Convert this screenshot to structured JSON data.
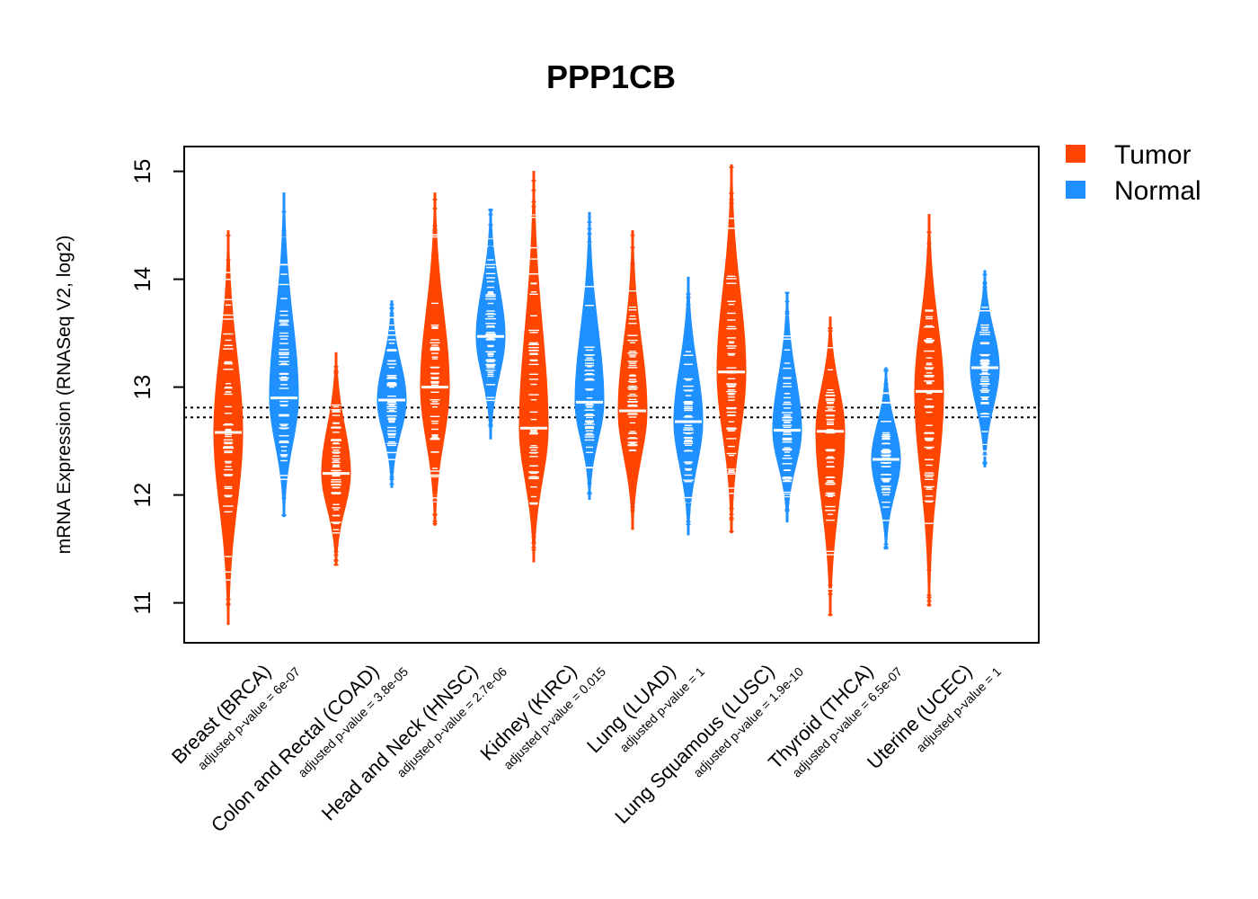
{
  "chart_data": {
    "type": "violin",
    "title": "PPP1CB",
    "ylabel": "mRNA Expression (RNASeq V2, log2)",
    "xlabel": "",
    "ylim": [
      10.63,
      15.23
    ],
    "yticks": [
      "11",
      "12",
      "13",
      "14",
      "15"
    ],
    "reference_lines": [
      12.72,
      12.81
    ],
    "legend": {
      "position": "top-right",
      "entries": [
        {
          "name": "Tumor",
          "color": "#FF4500"
        },
        {
          "name": "Normal",
          "color": "#1E90FF"
        }
      ]
    },
    "categories": [
      {
        "label": "Breast (BRCA)",
        "pvalue": "adjusted p-value = 6e-07",
        "tumor": {
          "median": 12.58,
          "min": 10.8,
          "max": 14.45
        },
        "normal": {
          "median": 12.9,
          "min": 11.8,
          "max": 14.8
        }
      },
      {
        "label": "Colon and Rectal (COAD)",
        "pvalue": "adjusted p-value = 3.8e-05",
        "tumor": {
          "median": 12.2,
          "min": 11.35,
          "max": 13.32
        },
        "normal": {
          "median": 12.88,
          "min": 12.07,
          "max": 13.8
        }
      },
      {
        "label": "Head and Neck (HNSC)",
        "pvalue": "adjusted p-value = 2.7e-06",
        "tumor": {
          "median": 13.0,
          "min": 11.72,
          "max": 14.8
        },
        "normal": {
          "median": 13.47,
          "min": 12.52,
          "max": 14.65
        }
      },
      {
        "label": "Kidney (KIRC)",
        "pvalue": "adjusted p-value = 0.015",
        "tumor": {
          "median": 12.62,
          "min": 11.38,
          "max": 15.0
        },
        "normal": {
          "median": 12.86,
          "min": 11.96,
          "max": 14.62
        }
      },
      {
        "label": "Lung (LUAD)",
        "pvalue": "adjusted p-value = 1",
        "tumor": {
          "median": 12.78,
          "min": 11.68,
          "max": 14.45
        },
        "normal": {
          "median": 12.68,
          "min": 11.63,
          "max": 14.02
        }
      },
      {
        "label": "Lung Squamous (LUSC)",
        "pvalue": "adjusted p-value = 1.9e-10",
        "tumor": {
          "median": 13.14,
          "min": 11.65,
          "max": 15.06
        },
        "normal": {
          "median": 12.6,
          "min": 11.75,
          "max": 13.88
        }
      },
      {
        "label": "Thyroid (THCA)",
        "pvalue": "adjusted p-value = 6.5e-07",
        "tumor": {
          "median": 12.59,
          "min": 10.88,
          "max": 13.65
        },
        "normal": {
          "median": 12.33,
          "min": 11.5,
          "max": 13.18
        }
      },
      {
        "label": "Uterine (UCEC)",
        "pvalue": "adjusted p-value = 1",
        "tumor": {
          "median": 12.96,
          "min": 10.97,
          "max": 14.6
        },
        "normal": {
          "median": 13.18,
          "min": 12.26,
          "max": 14.08
        }
      }
    ]
  }
}
